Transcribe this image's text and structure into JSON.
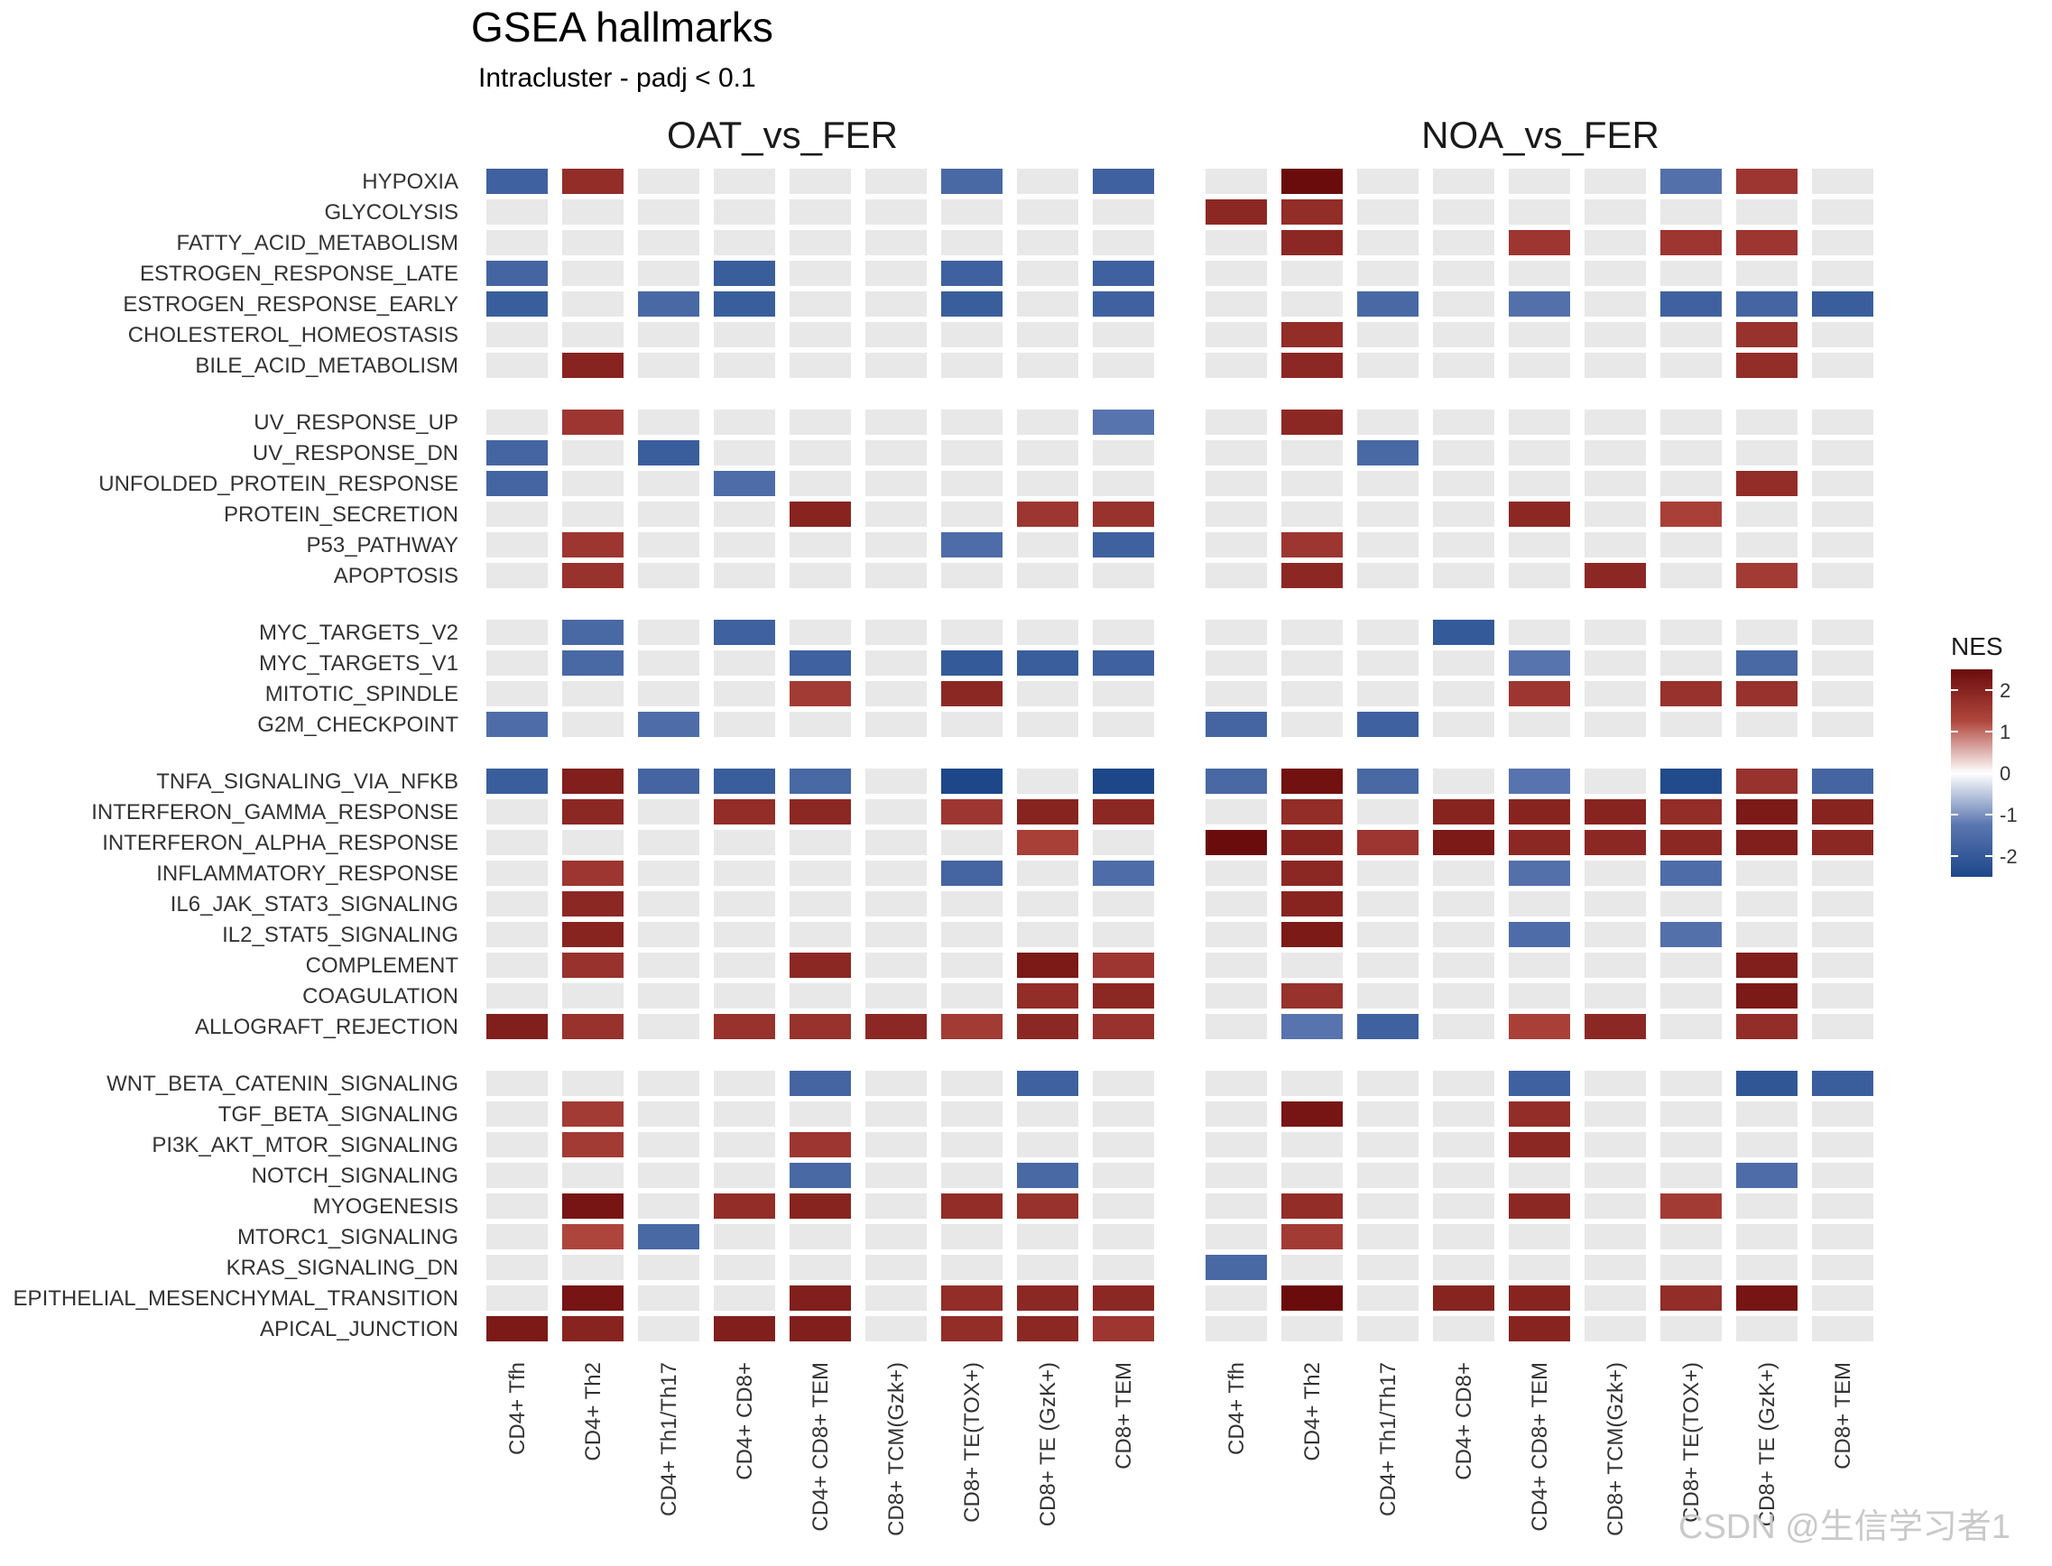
{
  "watermark": "CSDN @生信学习者1",
  "chart_data": {
    "type": "heatmap",
    "title": "GSEA hallmarks",
    "subtitle": "Intracluster -  padj < 0.1",
    "facets": [
      "OAT_vs_FER",
      "NOA_vs_FER"
    ],
    "columns": [
      "CD4+ Tfh",
      "CD4+ Th2",
      "CD4+ Th1/Th17",
      "CD4+ CD8+",
      "CD4+ CD8+ TEM",
      "CD8+ TCM(Gzk+)",
      "CD8+ TE(TOX+)",
      "CD8+ TE (GzK+)",
      "CD8+ TEM"
    ],
    "groups": [
      {
        "rows": [
          "HYPOXIA",
          "GLYCOLYSIS",
          "FATTY_ACID_METABOLISM",
          "ESTROGEN_RESPONSE_LATE",
          "ESTROGEN_RESPONSE_EARLY",
          "CHOLESTEROL_HOMEOSTASIS",
          "BILE_ACID_METABOLISM"
        ]
      },
      {
        "rows": [
          "UV_RESPONSE_UP",
          "UV_RESPONSE_DN",
          "UNFOLDED_PROTEIN_RESPONSE",
          "PROTEIN_SECRETION",
          "P53_PATHWAY",
          "APOPTOSIS"
        ]
      },
      {
        "rows": [
          "MYC_TARGETS_V2",
          "MYC_TARGETS_V1",
          "MITOTIC_SPINDLE",
          "G2M_CHECKPOINT"
        ]
      },
      {
        "rows": [
          "TNFA_SIGNALING_VIA_NFKB",
          "INTERFERON_GAMMA_RESPONSE",
          "INTERFERON_ALPHA_RESPONSE",
          "INFLAMMATORY_RESPONSE",
          "IL6_JAK_STAT3_SIGNALING",
          "IL2_STAT5_SIGNALING",
          "COMPLEMENT",
          "COAGULATION",
          "ALLOGRAFT_REJECTION"
        ]
      },
      {
        "rows": [
          "WNT_BETA_CATENIN_SIGNALING",
          "TGF_BETA_SIGNALING",
          "PI3K_AKT_MTOR_SIGNALING",
          "NOTCH_SIGNALING",
          "MYOGENESIS",
          "MTORC1_SIGNALING",
          "KRAS_SIGNALING_DN",
          "EPITHELIAL_MESENCHYMAL_TRANSITION",
          "APICAL_JUNCTION"
        ]
      }
    ],
    "values": {
      "OAT_vs_FER": [
        [
          -1.8,
          1.8,
          null,
          null,
          null,
          null,
          -1.6,
          null,
          -1.8
        ],
        [
          null,
          null,
          null,
          null,
          null,
          null,
          null,
          null,
          null
        ],
        [
          null,
          null,
          null,
          null,
          null,
          null,
          null,
          null,
          null
        ],
        [
          -1.7,
          null,
          null,
          -1.9,
          null,
          null,
          -1.8,
          null,
          -1.8
        ],
        [
          -1.9,
          null,
          -1.6,
          -1.9,
          null,
          null,
          -1.9,
          null,
          -1.8
        ],
        [
          null,
          null,
          null,
          null,
          null,
          null,
          null,
          null,
          null
        ],
        [
          null,
          2.0,
          null,
          null,
          null,
          null,
          null,
          null,
          null
        ],
        [
          null,
          1.6,
          null,
          null,
          null,
          null,
          null,
          null,
          -1.3
        ],
        [
          -1.7,
          null,
          -1.9,
          null,
          null,
          null,
          null,
          null,
          null
        ],
        [
          -1.7,
          null,
          null,
          -1.5,
          null,
          null,
          null,
          null,
          null
        ],
        [
          null,
          null,
          null,
          null,
          2.0,
          null,
          null,
          1.6,
          1.7
        ],
        [
          null,
          1.6,
          null,
          null,
          null,
          null,
          -1.5,
          null,
          -1.8
        ],
        [
          null,
          1.7,
          null,
          null,
          null,
          null,
          null,
          null,
          null
        ],
        [
          null,
          -1.6,
          null,
          -1.8,
          null,
          null,
          null,
          null,
          null
        ],
        [
          null,
          -1.6,
          null,
          null,
          -1.8,
          null,
          -2.0,
          -1.9,
          -1.8
        ],
        [
          null,
          null,
          null,
          null,
          1.5,
          null,
          1.9,
          null,
          null
        ],
        [
          -1.5,
          null,
          -1.5,
          null,
          null,
          null,
          null,
          null,
          null
        ],
        [
          -1.9,
          2.1,
          -1.7,
          -1.9,
          -1.6,
          null,
          -2.5,
          null,
          -2.5
        ],
        [
          null,
          1.9,
          null,
          1.8,
          1.9,
          null,
          1.6,
          2.0,
          1.9
        ],
        [
          null,
          null,
          null,
          null,
          null,
          null,
          null,
          1.4,
          null
        ],
        [
          null,
          1.6,
          null,
          null,
          null,
          null,
          -1.7,
          null,
          -1.5
        ],
        [
          null,
          1.9,
          null,
          null,
          null,
          null,
          null,
          null,
          null
        ],
        [
          null,
          2.0,
          null,
          null,
          null,
          null,
          null,
          null,
          null
        ],
        [
          null,
          1.7,
          null,
          null,
          1.9,
          null,
          null,
          2.2,
          1.6
        ],
        [
          null,
          null,
          null,
          null,
          null,
          null,
          null,
          1.8,
          1.9
        ],
        [
          2.1,
          1.7,
          null,
          1.7,
          1.7,
          1.9,
          1.5,
          1.9,
          1.7
        ],
        [
          null,
          null,
          null,
          null,
          -1.7,
          null,
          null,
          -1.8,
          null
        ],
        [
          null,
          1.5,
          null,
          null,
          null,
          null,
          null,
          null,
          null
        ],
        [
          null,
          1.5,
          null,
          null,
          1.6,
          null,
          null,
          null,
          null
        ],
        [
          null,
          null,
          null,
          null,
          -1.6,
          null,
          null,
          -1.6,
          null
        ],
        [
          null,
          2.3,
          null,
          1.8,
          2.0,
          null,
          1.8,
          1.7,
          null
        ],
        [
          null,
          1.3,
          -1.6,
          null,
          null,
          null,
          null,
          null,
          null
        ],
        [
          null,
          null,
          null,
          null,
          null,
          null,
          null,
          null,
          null
        ],
        [
          null,
          2.3,
          null,
          null,
          2.1,
          null,
          1.8,
          1.9,
          1.9
        ],
        [
          2.2,
          2.0,
          null,
          2.1,
          2.1,
          null,
          1.8,
          1.9,
          1.6
        ]
      ],
      "NOA_vs_FER": [
        [
          null,
          2.5,
          null,
          null,
          null,
          null,
          -1.4,
          1.6,
          null
        ],
        [
          1.9,
          1.8,
          null,
          null,
          null,
          null,
          null,
          null,
          null
        ],
        [
          null,
          1.9,
          null,
          null,
          1.6,
          null,
          1.6,
          1.6,
          null
        ],
        [
          null,
          null,
          null,
          null,
          null,
          null,
          null,
          null,
          null
        ],
        [
          null,
          null,
          -1.6,
          null,
          -1.4,
          null,
          -1.8,
          -1.7,
          -1.9
        ],
        [
          null,
          1.8,
          null,
          null,
          null,
          null,
          null,
          1.7,
          null
        ],
        [
          null,
          1.9,
          null,
          null,
          null,
          null,
          null,
          1.8,
          null
        ],
        [
          null,
          1.9,
          null,
          null,
          null,
          null,
          null,
          null,
          null
        ],
        [
          null,
          null,
          -1.6,
          null,
          null,
          null,
          null,
          null,
          null
        ],
        [
          null,
          null,
          null,
          null,
          null,
          null,
          null,
          1.8,
          null
        ],
        [
          null,
          null,
          null,
          null,
          1.9,
          null,
          1.4,
          null,
          null
        ],
        [
          null,
          1.6,
          null,
          null,
          null,
          null,
          null,
          null,
          null
        ],
        [
          null,
          1.9,
          null,
          null,
          null,
          1.9,
          null,
          1.5,
          null
        ],
        [
          null,
          null,
          null,
          -2.0,
          null,
          null,
          null,
          null,
          null
        ],
        [
          null,
          null,
          null,
          null,
          -1.3,
          null,
          null,
          -1.6,
          null
        ],
        [
          null,
          null,
          null,
          null,
          1.6,
          null,
          1.7,
          1.7,
          null
        ],
        [
          -1.7,
          null,
          -1.8,
          null,
          null,
          null,
          null,
          null,
          null
        ],
        [
          -1.6,
          2.4,
          -1.6,
          null,
          -1.3,
          null,
          -2.4,
          1.7,
          -1.7
        ],
        [
          null,
          1.8,
          null,
          2.0,
          2.0,
          2.0,
          1.8,
          2.2,
          2.0
        ],
        [
          2.6,
          2.0,
          1.6,
          2.2,
          1.9,
          1.9,
          1.9,
          2.1,
          1.9
        ],
        [
          null,
          1.9,
          null,
          null,
          -1.4,
          null,
          -1.5,
          null,
          null
        ],
        [
          null,
          2.0,
          null,
          null,
          null,
          null,
          null,
          null,
          null
        ],
        [
          null,
          2.2,
          null,
          null,
          -1.5,
          null,
          -1.4,
          null,
          null
        ],
        [
          null,
          null,
          null,
          null,
          null,
          null,
          null,
          2.1,
          null
        ],
        [
          null,
          1.7,
          null,
          null,
          null,
          null,
          null,
          2.2,
          null
        ],
        [
          null,
          -1.3,
          -1.8,
          null,
          1.4,
          1.9,
          null,
          1.8,
          null
        ],
        [
          null,
          null,
          null,
          null,
          -1.8,
          null,
          null,
          -2.1,
          -1.9
        ],
        [
          null,
          2.3,
          null,
          null,
          1.8,
          null,
          null,
          null,
          null
        ],
        [
          null,
          null,
          null,
          null,
          1.9,
          null,
          null,
          null,
          null
        ],
        [
          null,
          null,
          null,
          null,
          null,
          null,
          null,
          -1.5,
          null
        ],
        [
          null,
          1.8,
          null,
          null,
          1.9,
          null,
          1.5,
          null,
          null
        ],
        [
          null,
          1.5,
          null,
          null,
          null,
          null,
          null,
          null,
          null
        ],
        [
          -1.6,
          null,
          null,
          null,
          null,
          null,
          null,
          null,
          null
        ],
        [
          null,
          2.6,
          null,
          2.0,
          2.0,
          null,
          1.8,
          2.3,
          null
        ],
        [
          null,
          null,
          null,
          null,
          2.0,
          null,
          null,
          null,
          null
        ]
      ]
    },
    "legend": {
      "title": "NES",
      "ticks": [
        2,
        1,
        0,
        -1,
        -2
      ],
      "range": [
        -2.5,
        2.5
      ],
      "colors": {
        "low": "#1d4789",
        "mid": "#ffffff",
        "high": "#6b0c0c",
        "na": "#e8e8e8"
      },
      "placement": "right"
    }
  }
}
